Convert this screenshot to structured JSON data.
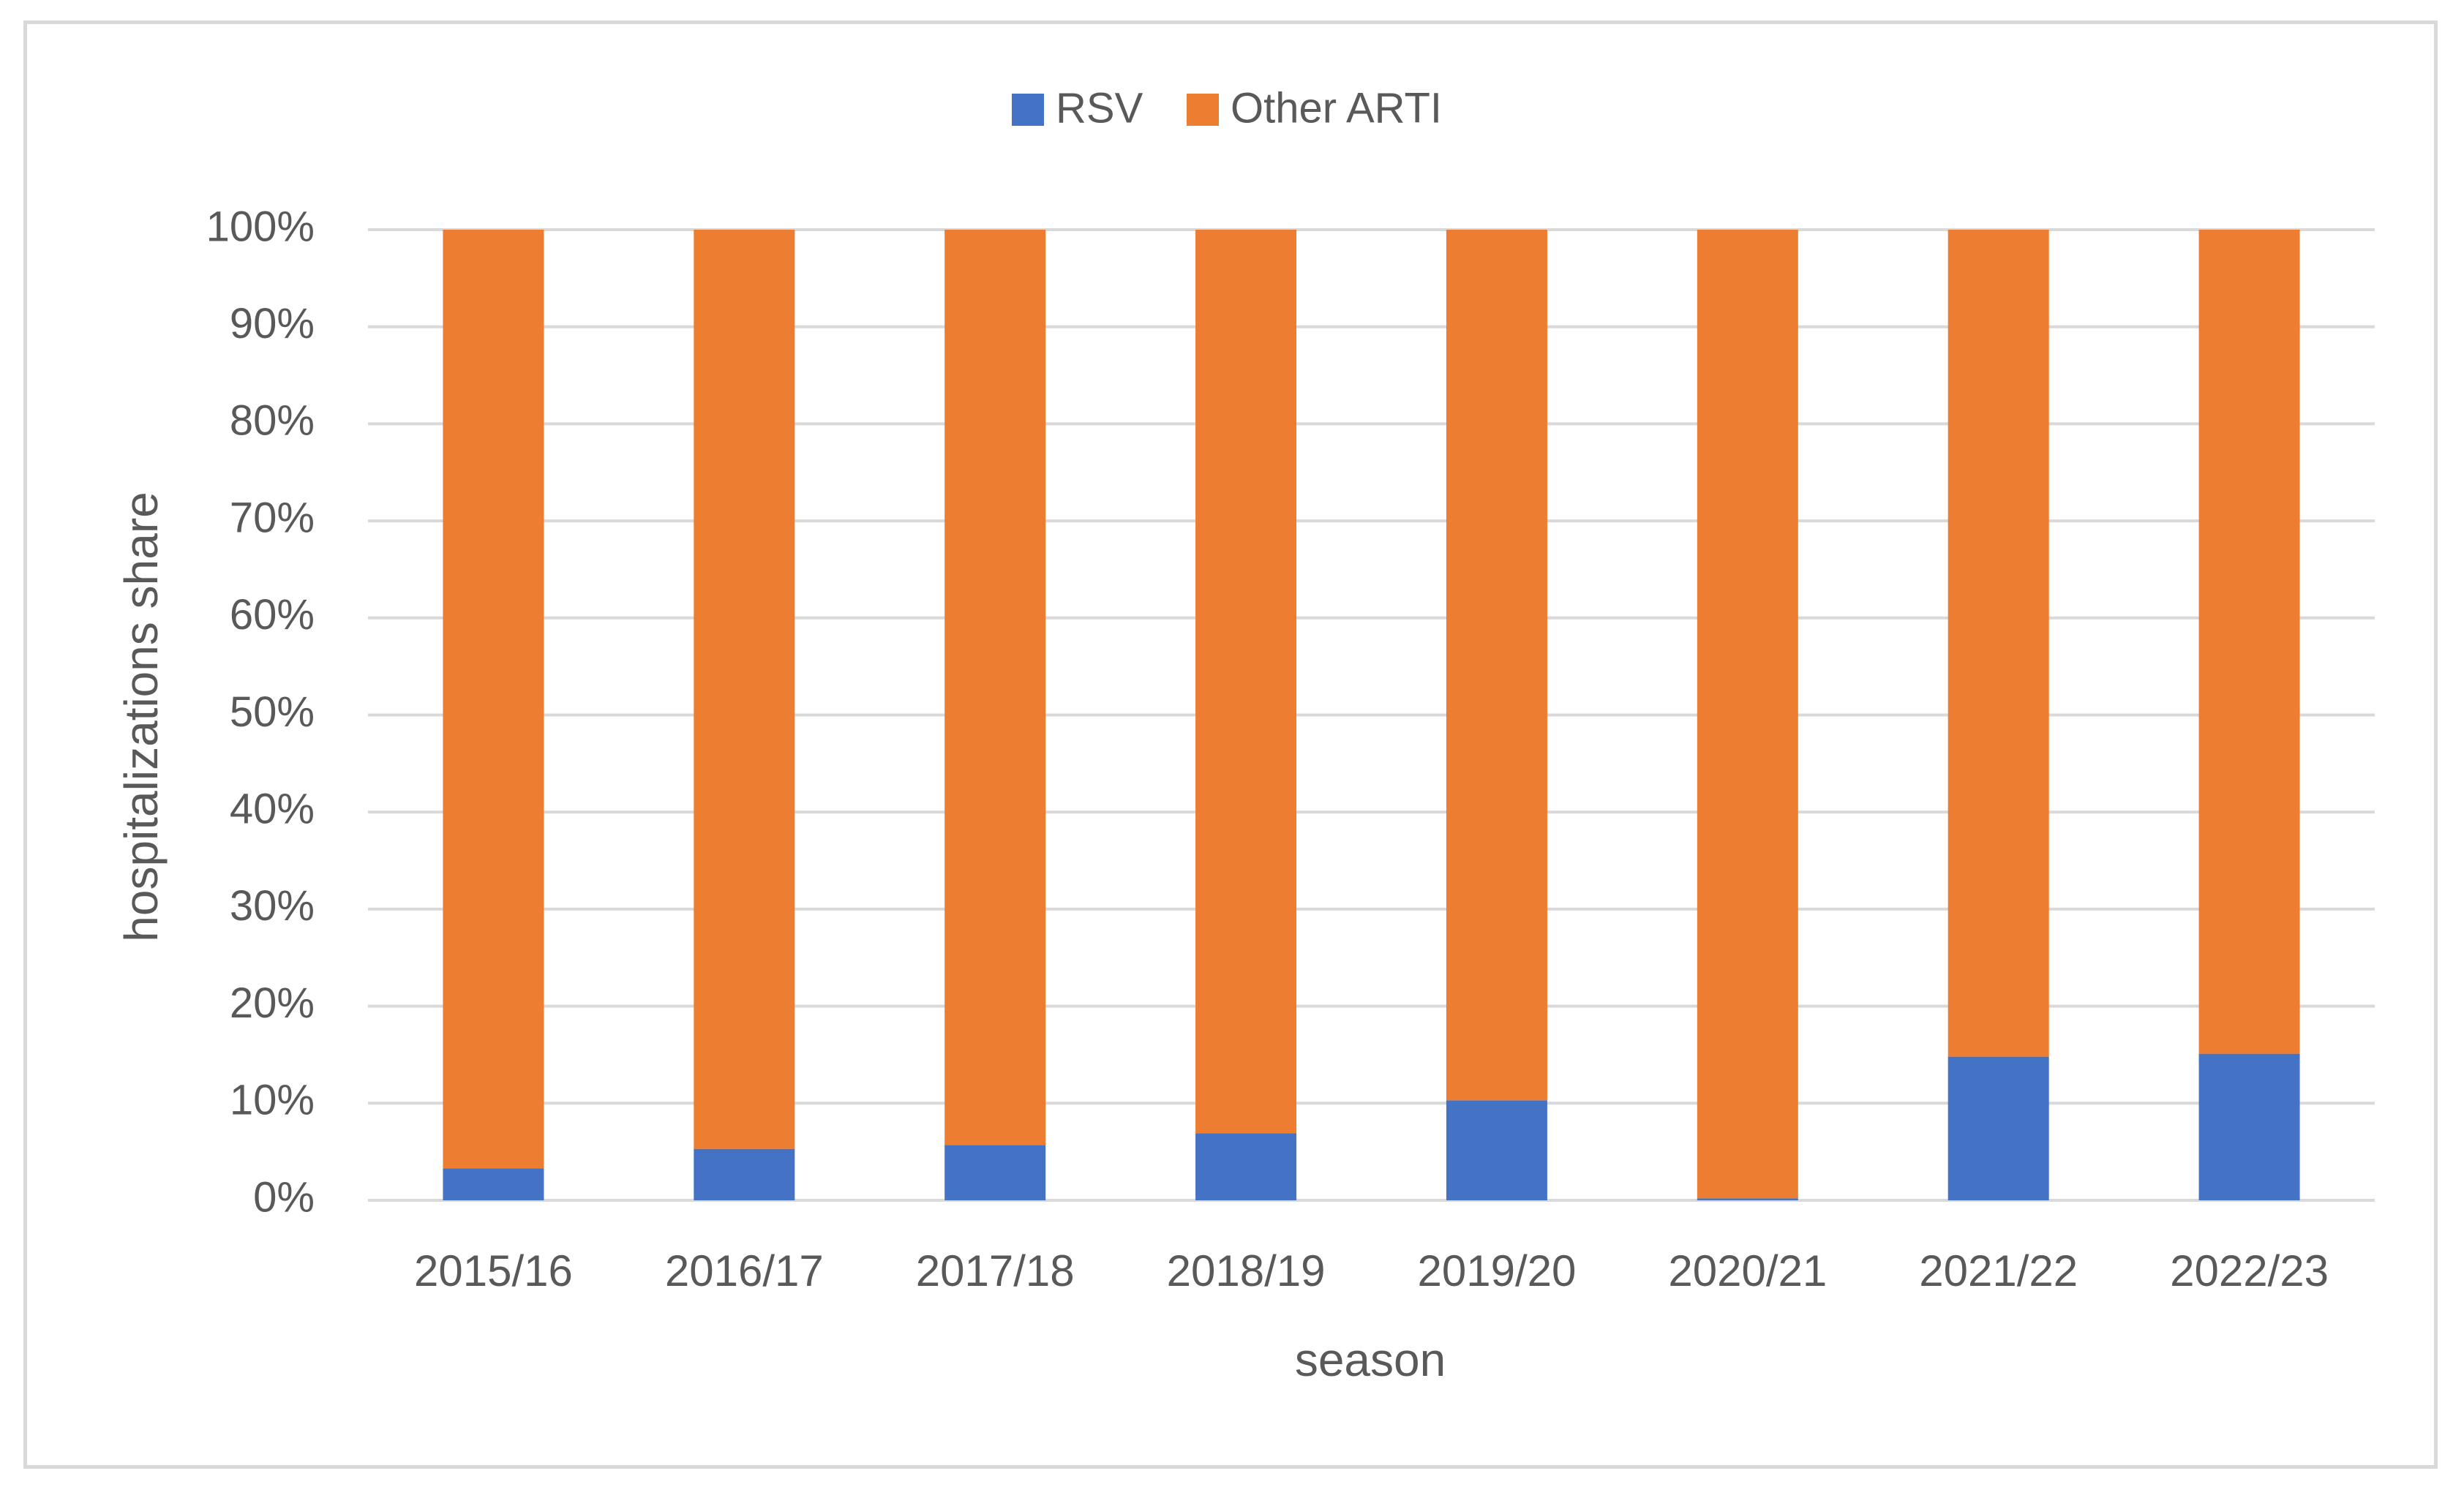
{
  "chart_data": {
    "type": "bar",
    "stacked": true,
    "categories": [
      "2015/16",
      "2016/17",
      "2017/18",
      "2018/19",
      "2019/20",
      "2020/21",
      "2021/22",
      "2022/23"
    ],
    "series": [
      {
        "name": "RSV",
        "color": "#4472c4",
        "values": [
          3.3,
          5.3,
          5.7,
          6.9,
          10.3,
          0.2,
          14.8,
          15.1
        ]
      },
      {
        "name": "Other ARTI",
        "color": "#ed7d31",
        "values": [
          96.7,
          94.7,
          94.3,
          93.1,
          89.7,
          99.8,
          85.2,
          84.9
        ]
      }
    ],
    "title": "",
    "xlabel": "season",
    "ylabel": "hospitalizations share",
    "ylim": [
      0,
      100
    ],
    "yticks": [
      "0%",
      "10%",
      "20%",
      "30%",
      "40%",
      "50%",
      "60%",
      "70%",
      "80%",
      "90%",
      "100%"
    ],
    "grid": true,
    "legend_position": "top-center",
    "colors": {
      "gridline": "#d9d9d9",
      "text": "#595959",
      "border": "#d9d9d9"
    }
  }
}
